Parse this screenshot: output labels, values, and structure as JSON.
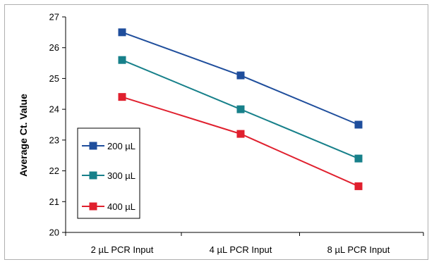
{
  "chart_data": {
    "type": "line",
    "title": "",
    "xlabel": "",
    "ylabel": "Average Ct. Value",
    "categories": [
      "2 µL PCR Input",
      "4 µL PCR Input",
      "8 µL PCR Input"
    ],
    "ylim": [
      20,
      27
    ],
    "yticks": [
      20,
      21,
      22,
      23,
      24,
      25,
      26,
      27
    ],
    "grid": false,
    "legend_position": "left",
    "series": [
      {
        "name": "200 µL",
        "color": "#1f4e9c",
        "values": [
          26.5,
          25.1,
          23.5
        ]
      },
      {
        "name": "300 µL",
        "color": "#17808a",
        "values": [
          25.6,
          24.0,
          22.4
        ]
      },
      {
        "name": "400 µL",
        "color": "#e0202e",
        "values": [
          24.4,
          23.2,
          21.5
        ]
      }
    ]
  }
}
